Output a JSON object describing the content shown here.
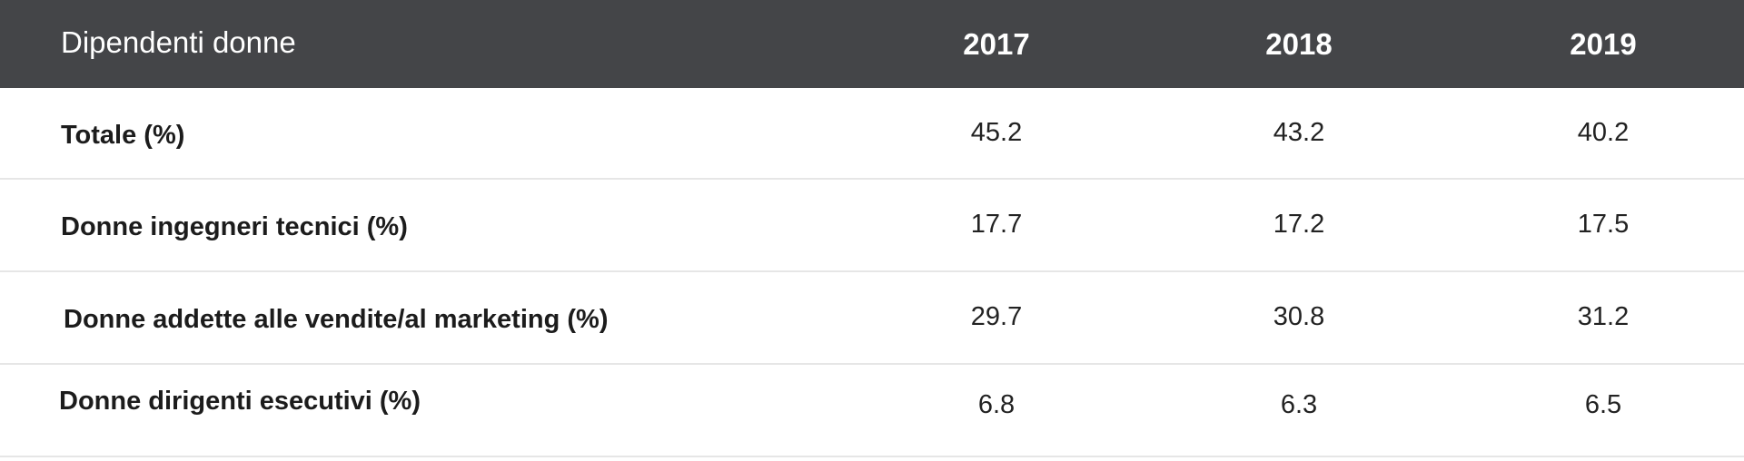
{
  "table": {
    "header": {
      "title": "Dipendenti donne",
      "years": [
        "2017",
        "2018",
        "2019"
      ]
    },
    "rows": [
      {
        "label": "Totale (%)",
        "values": [
          "45.2",
          "43.2",
          "40.2"
        ]
      },
      {
        "label": "Donne ingegneri tecnici (%)",
        "values": [
          "17.7",
          "17.2",
          "17.5"
        ]
      },
      {
        "label": "Donne addette alle vendite/al marketing (%)",
        "values": [
          "29.7",
          "30.8",
          "31.2"
        ]
      },
      {
        "label": "Donne dirigenti esecutivi (%)",
        "values": [
          "6.8",
          "6.3",
          "6.5"
        ]
      }
    ]
  },
  "colors": {
    "header_background": "#444548",
    "header_text": "#ffffff",
    "row_divider": "#e6e6e6"
  }
}
